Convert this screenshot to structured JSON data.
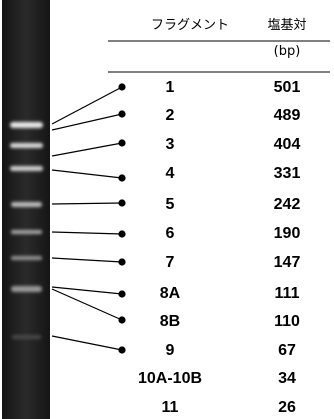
{
  "table": {
    "header_fragment": "フラグメント",
    "header_bp_line1": "塩基対",
    "header_bp_line2": "(bp)"
  },
  "rows": [
    {
      "fragment": "1",
      "bp": "501"
    },
    {
      "fragment": "2",
      "bp": "489"
    },
    {
      "fragment": "3",
      "bp": "404"
    },
    {
      "fragment": "4",
      "bp": "331"
    },
    {
      "fragment": "5",
      "bp": "242"
    },
    {
      "fragment": "6",
      "bp": "190"
    },
    {
      "fragment": "7",
      "bp": "147"
    },
    {
      "fragment": "8A",
      "bp": "111"
    },
    {
      "fragment": "8B",
      "bp": "110"
    },
    {
      "fragment": "9",
      "bp": "67"
    },
    {
      "fragment": "10A-10B",
      "bp": "34"
    },
    {
      "fragment": "11",
      "bp": "26"
    }
  ],
  "colors": {
    "gel_background": "#1f1f1f",
    "band": "#e6e6e6",
    "line": "#000000"
  }
}
